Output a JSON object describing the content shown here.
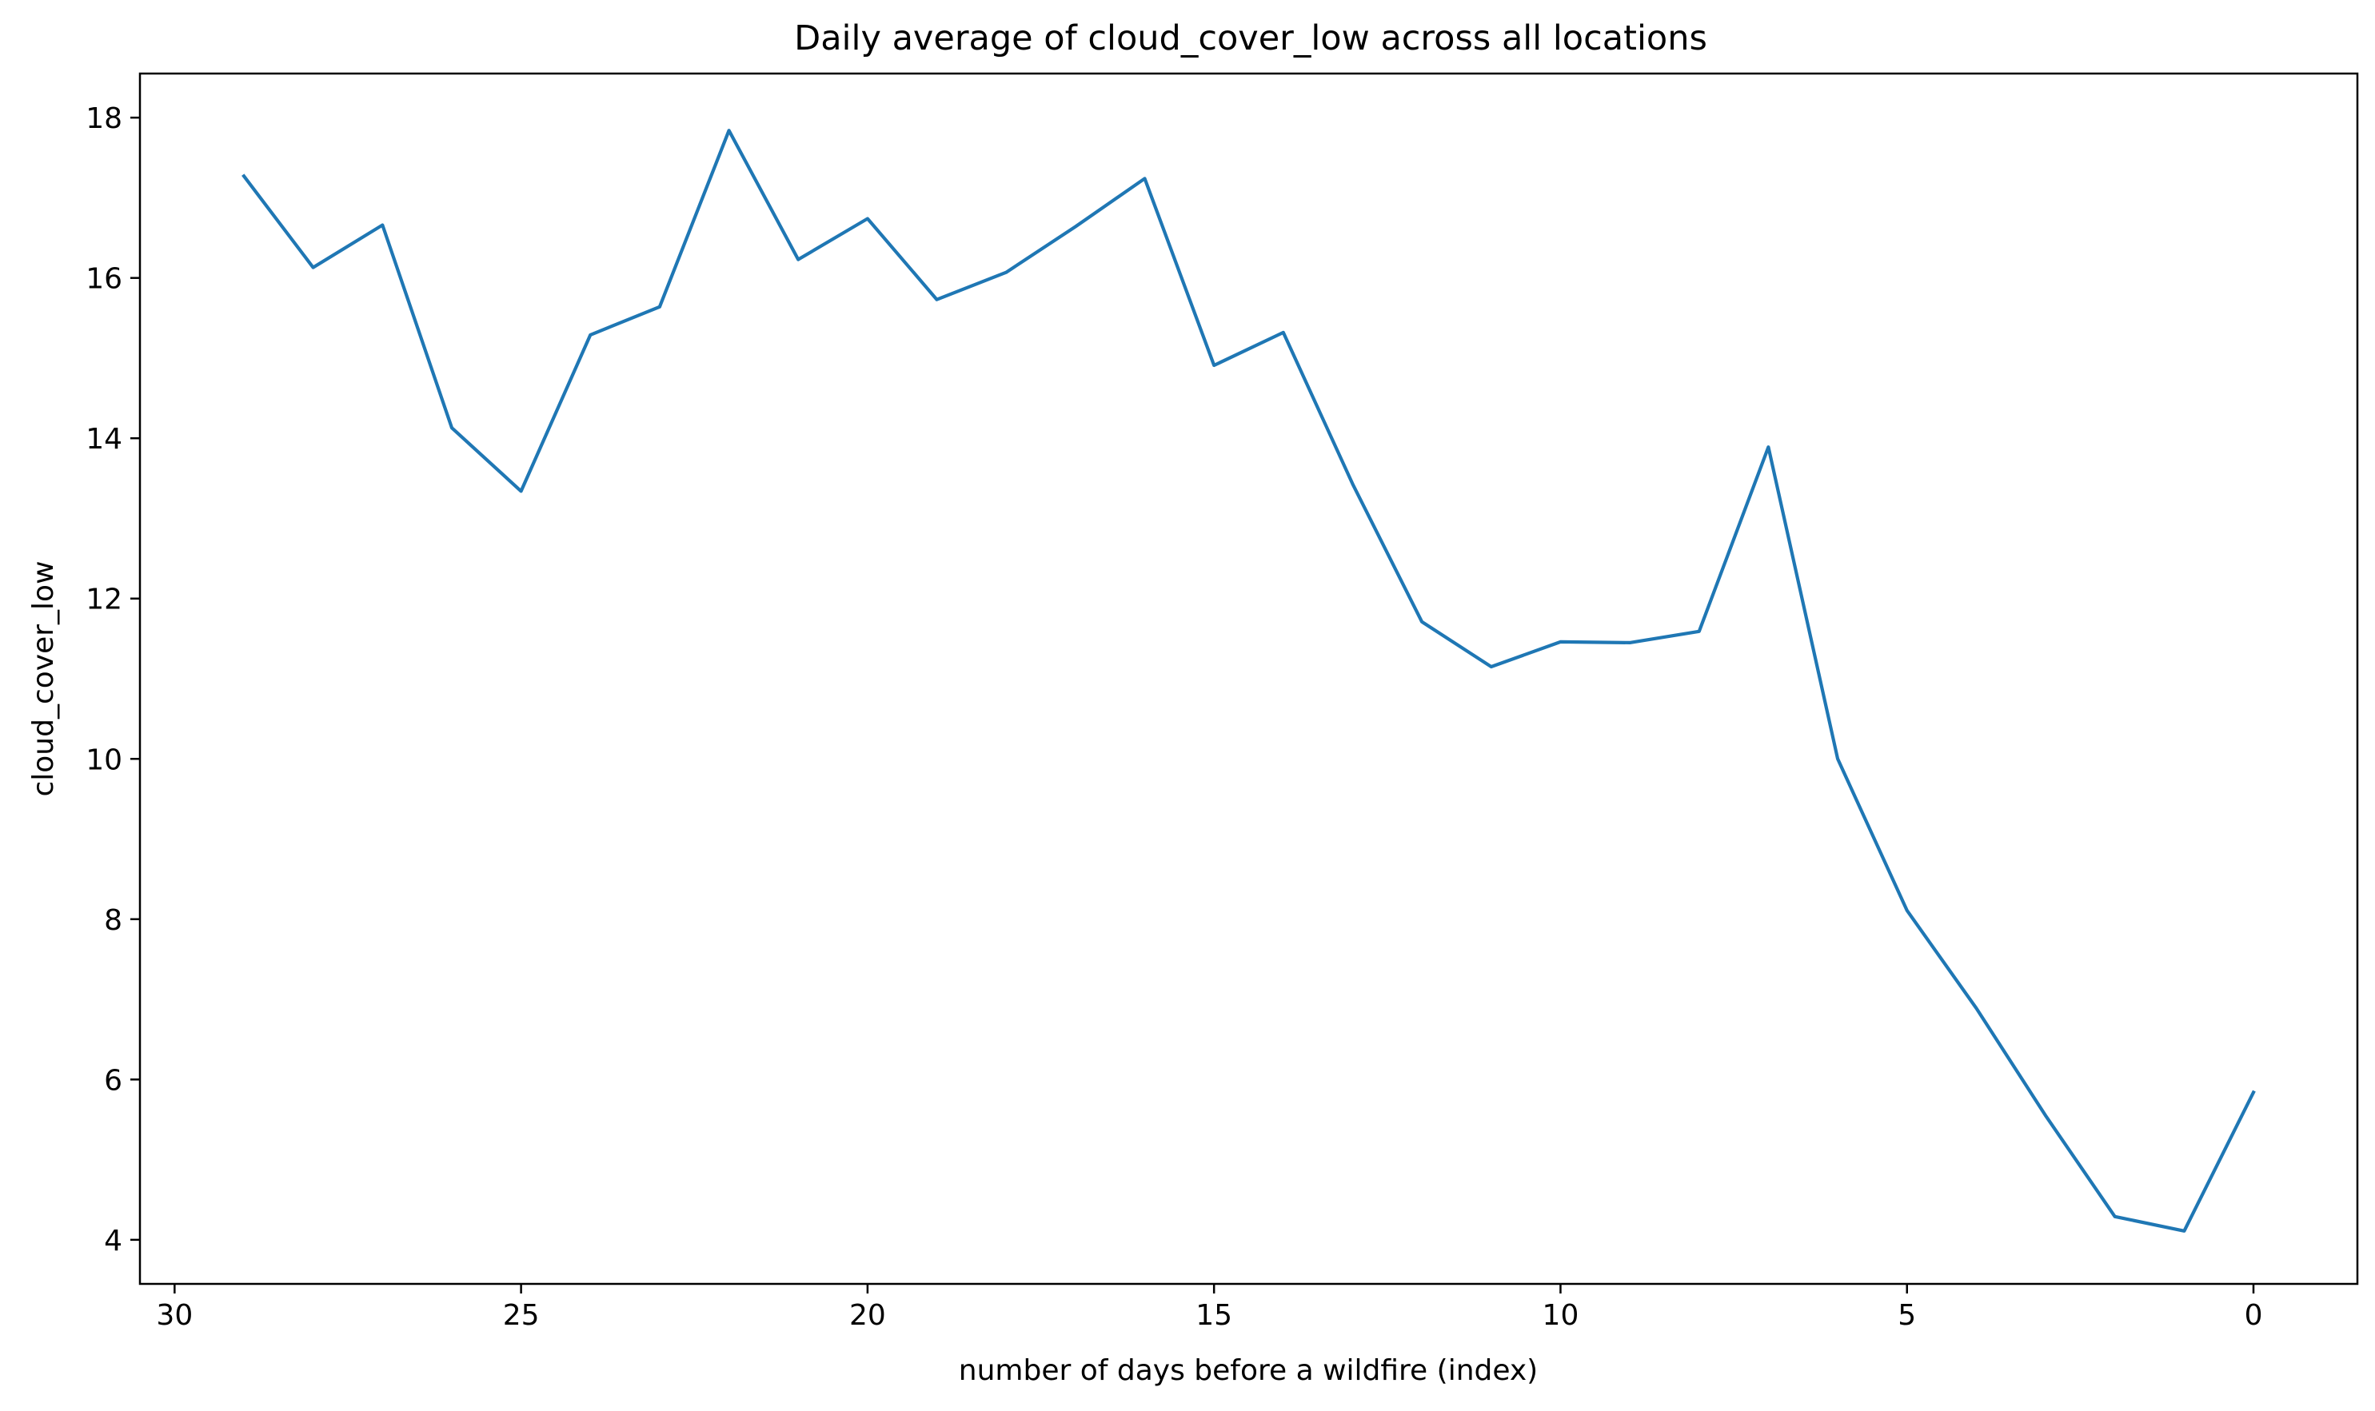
{
  "chart_data": {
    "type": "line",
    "title": "Daily average of cloud_cover_low across all locations",
    "xlabel": "number of days before a wildfire (index)",
    "ylabel": "cloud_cover_low",
    "xlim": [
      30.5,
      -1.5
    ],
    "ylim": [
      3.45,
      18.55
    ],
    "x_ticks": [
      30,
      25,
      20,
      15,
      10,
      5,
      0
    ],
    "y_ticks": [
      4,
      6,
      8,
      10,
      12,
      14,
      16,
      18
    ],
    "x_inverted": true,
    "grid": false,
    "legend": "none",
    "series": [
      {
        "color": "#1f77b4",
        "x": [
          29,
          28,
          27,
          26,
          25,
          24,
          23,
          22,
          21,
          20,
          19,
          18,
          17,
          16,
          15,
          14,
          13,
          12,
          11,
          10,
          9,
          8,
          7,
          6,
          5,
          4,
          3,
          2,
          1,
          0
        ],
        "y": [
          17.27,
          16.13,
          16.66,
          14.13,
          13.34,
          15.29,
          15.64,
          17.84,
          16.23,
          16.74,
          15.73,
          16.07,
          16.64,
          17.24,
          14.91,
          15.32,
          13.43,
          11.71,
          11.15,
          11.46,
          11.45,
          11.59,
          13.89,
          10.0,
          8.11,
          6.89,
          5.55,
          4.29,
          4.11,
          5.84
        ]
      }
    ]
  }
}
